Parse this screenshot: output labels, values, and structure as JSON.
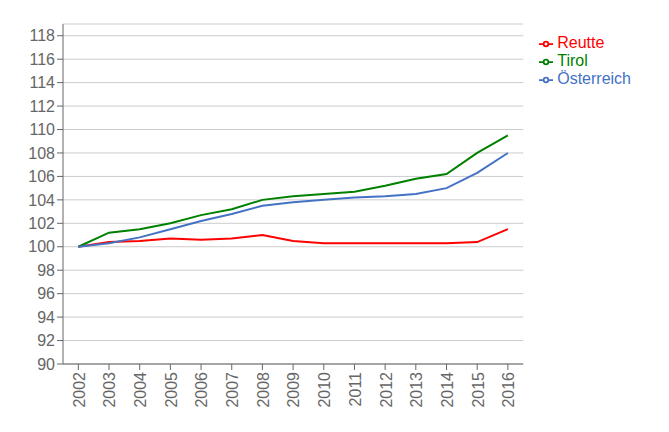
{
  "chart_data": {
    "type": "line",
    "x": [
      2002,
      2003,
      2004,
      2005,
      2006,
      2007,
      2008,
      2009,
      2010,
      2011,
      2012,
      2013,
      2014,
      2015,
      2016
    ],
    "series": [
      {
        "name": "Reutte",
        "color": "#FF0000",
        "values": [
          100.0,
          100.4,
          100.5,
          100.7,
          100.6,
          100.7,
          101.0,
          100.5,
          100.3,
          100.3,
          100.3,
          100.3,
          100.3,
          100.4,
          101.5
        ]
      },
      {
        "name": "Tirol",
        "color": "#008000",
        "values": [
          100.0,
          101.2,
          101.5,
          102.0,
          102.7,
          103.2,
          104.0,
          104.3,
          104.5,
          104.7,
          105.2,
          105.8,
          106.2,
          108.0,
          109.5
        ]
      },
      {
        "name": "Österreich",
        "color": "#4472C4",
        "values": [
          100.0,
          100.3,
          100.8,
          101.5,
          102.2,
          102.8,
          103.5,
          103.8,
          104.0,
          104.2,
          104.3,
          104.5,
          105.0,
          106.3,
          108.0
        ]
      }
    ],
    "xlim": [
      2001.5,
      2016.5
    ],
    "xticks": [
      2002,
      2003,
      2004,
      2005,
      2006,
      2007,
      2008,
      2009,
      2010,
      2011,
      2012,
      2013,
      2014,
      2015,
      2016
    ],
    "ylim": [
      90,
      119
    ],
    "yticks": [
      90,
      92,
      94,
      96,
      98,
      100,
      102,
      104,
      106,
      108,
      110,
      112,
      114,
      116,
      118
    ],
    "grid": true,
    "legend": "right"
  }
}
